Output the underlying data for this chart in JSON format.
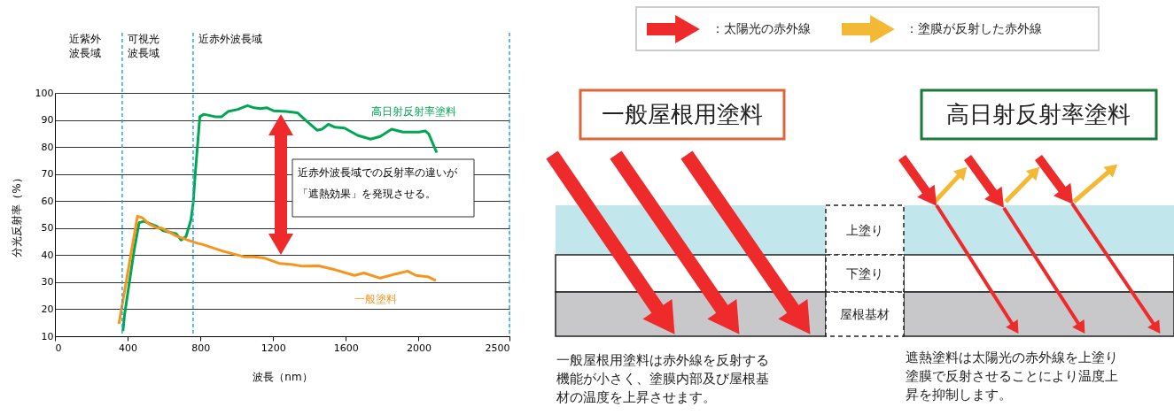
{
  "chart_data": [
    {
      "type": "line",
      "xlabel": "波長（nm）",
      "ylabel": "分光反射率（%）",
      "xlim": [
        0,
        2500
      ],
      "ylim": [
        10,
        100
      ],
      "xticks": [
        0,
        400,
        800,
        1200,
        1600,
        2000,
        2500
      ],
      "yticks": [
        10,
        20,
        30,
        40,
        50,
        60,
        70,
        80,
        90,
        100
      ],
      "grid": "y",
      "series": [
        {
          "name": "高日射反射率塗料",
          "color": "#00a651",
          "x": [
            374,
            383,
            436,
            463,
            490,
            561,
            596,
            667,
            694,
            721,
            748,
            760,
            771,
            797,
            819,
            881,
            917,
            952,
            1006,
            1059,
            1095,
            1130,
            1166,
            1202,
            1273,
            1335,
            1380,
            1442,
            1469,
            1504,
            1540,
            1593,
            1665,
            1736,
            1789,
            1852,
            1914,
            2003,
            2038,
            2056,
            2100
          ],
          "values": [
            11.9,
            18,
            42,
            52,
            52.5,
            50.6,
            49,
            47.9,
            45.6,
            46.9,
            53,
            59,
            69.4,
            91.2,
            92.1,
            91.2,
            91.2,
            93.1,
            93.9,
            95.3,
            94.5,
            94.2,
            94.5,
            93.4,
            93.1,
            92.6,
            89.8,
            86.2,
            86.6,
            88.4,
            87.3,
            87,
            84.3,
            82.9,
            83.9,
            86.6,
            85.5,
            85.5,
            85.9,
            84.8,
            77.9
          ]
        },
        {
          "name": "一般塗料",
          "color": "#f7941d",
          "x": [
            352,
            454,
            481,
            516,
            561,
            587,
            632,
            667,
            739,
            783,
            810,
            917,
            1041,
            1095,
            1148,
            1237,
            1308,
            1362,
            1451,
            1540,
            1647,
            1700,
            1789,
            1878,
            1940,
            1985,
            2056,
            2095
          ],
          "values": [
            14.6,
            54.4,
            53.8,
            51.6,
            50,
            50,
            48.4,
            47.1,
            45.4,
            44.4,
            44,
            41.6,
            39.4,
            39.4,
            39,
            36.9,
            36.5,
            35.9,
            36,
            34.6,
            32.5,
            33.4,
            31.5,
            33.1,
            34.1,
            32.5,
            31.9,
            30.6
          ]
        }
      ],
      "ref_lines": [
        {
          "axis": "x",
          "value": 370,
          "label": "可視光波長域",
          "color": "#29abe2",
          "line_style": "dashed"
        },
        {
          "axis": "x",
          "value": 760,
          "label": "近赤外波長域",
          "color": "#29abe2",
          "line_style": "dashed"
        },
        {
          "axis": "x",
          "value": 2500,
          "label": null,
          "color": "#29abe2",
          "line_style": "dashed"
        }
      ],
      "annotations": [
        "近紫外波長域",
        "近赤外波長域での反射率の違いが「遮熱効果」を発現させる。"
      ]
    },
    {
      "type": "other",
      "annotations": [
        "：太陽光の赤外線",
        "：塗膜が反射した赤外線",
        "一般屋根用塗料",
        "高日射反射率塗料",
        "上塗り",
        "下塗り",
        "屋根基材",
        "一般屋根用塗料は赤外線を反射する機能が小さく、塗膜内部及び屋根基材の温度を上昇させます。",
        "遮熱塗料は太陽光の赤外線を上塗り塗膜で反射させることにより温度上昇を抑制します。"
      ]
    }
  ]
}
